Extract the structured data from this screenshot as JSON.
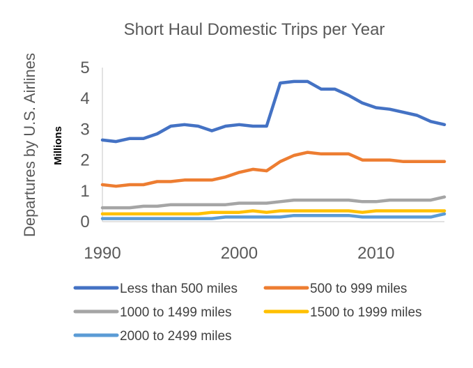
{
  "chart_data": {
    "type": "line",
    "title": "Short Haul Domestic Trips per Year",
    "ylabel": "Departures  by U.S. Airlines",
    "y_unit": "Millions",
    "xlabel": "",
    "xlim": [
      1990,
      2015
    ],
    "ylim": [
      0,
      5
    ],
    "yticks": [
      "0",
      "1",
      "2",
      "3",
      "4",
      "5"
    ],
    "xticks": [
      {
        "value": 1990,
        "label": "1990"
      },
      {
        "value": 2000,
        "label": "2000"
      },
      {
        "value": 2010,
        "label": "2010"
      }
    ],
    "grid": false,
    "legend_position": "bottom",
    "x": [
      1990,
      1991,
      1992,
      1993,
      1994,
      1995,
      1996,
      1997,
      1998,
      1999,
      2000,
      2001,
      2002,
      2003,
      2004,
      2005,
      2006,
      2007,
      2008,
      2009,
      2010,
      2011,
      2012,
      2013,
      2014,
      2015
    ],
    "series": [
      {
        "name": "Less than 500 miles",
        "color": "#4472C4",
        "values": [
          2.65,
          2.6,
          2.7,
          2.7,
          2.85,
          3.1,
          3.15,
          3.1,
          2.95,
          3.1,
          3.15,
          3.1,
          3.1,
          4.5,
          4.55,
          4.55,
          4.3,
          4.3,
          4.1,
          3.85,
          3.7,
          3.65,
          3.55,
          3.45,
          3.25,
          3.15
        ]
      },
      {
        "name": "500 to 999 miles",
        "color": "#ED7D31",
        "values": [
          1.2,
          1.15,
          1.2,
          1.2,
          1.3,
          1.3,
          1.35,
          1.35,
          1.35,
          1.45,
          1.6,
          1.7,
          1.65,
          1.95,
          2.15,
          2.25,
          2.2,
          2.2,
          2.2,
          2.0,
          2.0,
          2.0,
          1.95,
          1.95,
          1.95,
          1.95
        ]
      },
      {
        "name": "1000 to 1499 miles",
        "color": "#A5A5A5",
        "values": [
          0.45,
          0.45,
          0.45,
          0.5,
          0.5,
          0.55,
          0.55,
          0.55,
          0.55,
          0.55,
          0.6,
          0.6,
          0.6,
          0.65,
          0.7,
          0.7,
          0.7,
          0.7,
          0.7,
          0.65,
          0.65,
          0.7,
          0.7,
          0.7,
          0.7,
          0.8
        ]
      },
      {
        "name": "1500 to 1999 miles",
        "color": "#FFC000",
        "values": [
          0.25,
          0.25,
          0.25,
          0.25,
          0.25,
          0.25,
          0.25,
          0.25,
          0.3,
          0.3,
          0.3,
          0.35,
          0.3,
          0.35,
          0.35,
          0.35,
          0.35,
          0.35,
          0.35,
          0.3,
          0.35,
          0.35,
          0.35,
          0.35,
          0.35,
          0.35
        ]
      },
      {
        "name": "2000 to 2499 miles",
        "color": "#5B9BD5",
        "values": [
          0.1,
          0.1,
          0.1,
          0.1,
          0.1,
          0.1,
          0.1,
          0.1,
          0.1,
          0.15,
          0.15,
          0.15,
          0.15,
          0.15,
          0.2,
          0.2,
          0.2,
          0.2,
          0.2,
          0.15,
          0.15,
          0.15,
          0.15,
          0.15,
          0.15,
          0.25
        ]
      }
    ]
  }
}
